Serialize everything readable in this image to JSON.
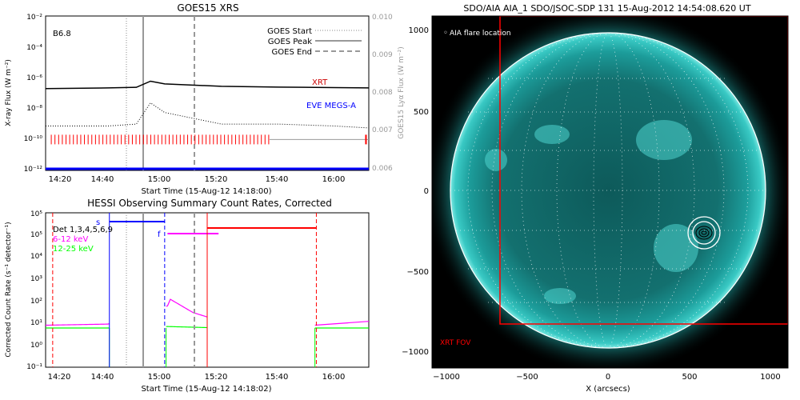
{
  "top_panel": {
    "title": "GOES15 XRS",
    "class_label": "B6.8",
    "ylabel": "X-ray Flux (W m⁻²)",
    "y2label": "GOES15 Lyα Flux (W m⁻²)",
    "xlabel": "Start Time (15-Aug-12 14:18:00)",
    "legend": [
      "GOES Start",
      "GOES Peak",
      "GOES End"
    ],
    "series_labels": {
      "xrt": "XRT",
      "eve": "EVE MEGS-A"
    },
    "ytick_labels": [
      "10⁻²",
      "10⁻⁴",
      "10⁻⁶",
      "10⁻⁸",
      "10⁻¹⁰",
      "10⁻¹²"
    ],
    "y2tick_labels": [
      "0.010",
      "0.009",
      "0.008",
      "0.007",
      "0.006"
    ],
    "xtick_labels": [
      "14:20",
      "14:40",
      "15:00",
      "15:20",
      "15:40",
      "16:00"
    ]
  },
  "bottom_panel": {
    "title": "HESSI Observing Summary Count Rates, Corrected",
    "ylabel": "Corrected Count Rate (s⁻¹ detector⁻¹)",
    "xlabel": "Start Time (15-Aug-12 14:18:02)",
    "legend": [
      "Det 1,3,4,5,6,9",
      "6-12 keV",
      "12-25 keV"
    ],
    "marker_s": "s",
    "marker_f": "f",
    "ytick_labels": [
      "10⁵",
      "10⁵",
      "10⁴",
      "10³",
      "10²",
      "10¹",
      "10⁰",
      "10⁻¹"
    ],
    "xtick_labels": [
      "14:20",
      "14:40",
      "15:00",
      "15:20",
      "15:40",
      "16:00"
    ]
  },
  "right_panel": {
    "title": "SDO/AIA AIA_1 SDO/JSOC-SDP 131 15-Aug-2012 14:54:08.620 UT",
    "flare_label": "AIA flare location",
    "fov_label": "XRT FOV",
    "xlabel": "X (arcsecs)",
    "xtick_labels": [
      "−1000",
      "−500",
      "0",
      "500",
      "1000"
    ],
    "ytick_labels": [
      "1000",
      "500",
      "0",
      "−500",
      "−1000"
    ]
  },
  "colors": {
    "xrt": "#000000",
    "xrt_label": "#cc0000",
    "eve": "#0000ff",
    "red": "#ff0000",
    "magenta": "#ff00ff",
    "green": "#00ff00",
    "blue": "#0000ff",
    "sun": "#1fa7a5",
    "sky": "#000000"
  },
  "chart_data": [
    {
      "type": "line",
      "title": "GOES15 XRS",
      "xlabel": "Start Time (15-Aug-12 14:18:00)",
      "ylabel": "X-ray Flux (W m⁻²)",
      "y2label": "GOES15 Lyα Flux (W m⁻²)",
      "xlim": [
        "14:18",
        "16:12"
      ],
      "ylim": [
        1e-12,
        0.01
      ],
      "y2lim": [
        0.006,
        0.01
      ],
      "yscale": "log",
      "markers": {
        "goes_start": "14:47",
        "goes_peak": "14:53",
        "goes_end": "15:11"
      },
      "series": [
        {
          "name": "XRT",
          "x": [
            "14:18",
            "14:40",
            "14:50",
            "14:55",
            "15:00",
            "15:20",
            "15:40",
            "16:00",
            "16:12"
          ],
          "y": [
            2e-07,
            2.2e-07,
            2.4e-07,
            6e-07,
            4e-07,
            2.8e-07,
            2.5e-07,
            2.3e-07,
            2.2e-07
          ]
        },
        {
          "name": "Lyα",
          "x": [
            "14:18",
            "14:40",
            "14:50",
            "14:55",
            "15:00",
            "15:20",
            "15:40",
            "16:00",
            "16:12"
          ],
          "y": [
            0.00715,
            0.00715,
            0.0072,
            0.00775,
            0.0075,
            0.0072,
            0.0072,
            0.00715,
            0.0071
          ]
        },
        {
          "name": "EVE MEGS-A",
          "x": [
            "14:18",
            "16:12"
          ],
          "y": [
            1e-12,
            1e-12
          ]
        }
      ]
    },
    {
      "type": "line",
      "title": "HESSI Observing Summary Count Rates, Corrected",
      "xlabel": "Start Time (15-Aug-12 14:18:02)",
      "ylabel": "Corrected Count Rate (s⁻¹ detector⁻¹)",
      "xlim": [
        "14:18",
        "16:12"
      ],
      "ylim": [
        0.1,
        1000000.0
      ],
      "yscale": "log",
      "series": [
        {
          "name": "6-12 keV",
          "x": [
            "14:18",
            "14:40",
            "15:01",
            "15:02",
            "15:10",
            "15:20",
            "15:30",
            "15:53",
            "16:12"
          ],
          "y": [
            8,
            9,
            60,
            120,
            30,
            12,
            10,
            8,
            12
          ]
        },
        {
          "name": "12-25 keV",
          "x": [
            "14:18",
            "14:40",
            "15:01",
            "15:20",
            "15:30",
            "15:53",
            "16:12"
          ],
          "y": [
            6,
            6,
            7,
            6,
            6,
            6,
            6
          ]
        }
      ]
    },
    {
      "type": "heatmap",
      "title": "SDO/AIA AIA_1 SDO/JSOC-SDP 131 15-Aug-2012 14:54:08.620 UT",
      "xlabel": "X (arcsecs)",
      "xlim": [
        -1200,
        1100
      ],
      "ylim": [
        -1100,
        1100
      ],
      "flare_location": [
        620,
        -280
      ],
      "xrt_fov": {
        "x": [
          -680,
          1100
        ],
        "y": [
          -820,
          1100
        ]
      }
    }
  ]
}
